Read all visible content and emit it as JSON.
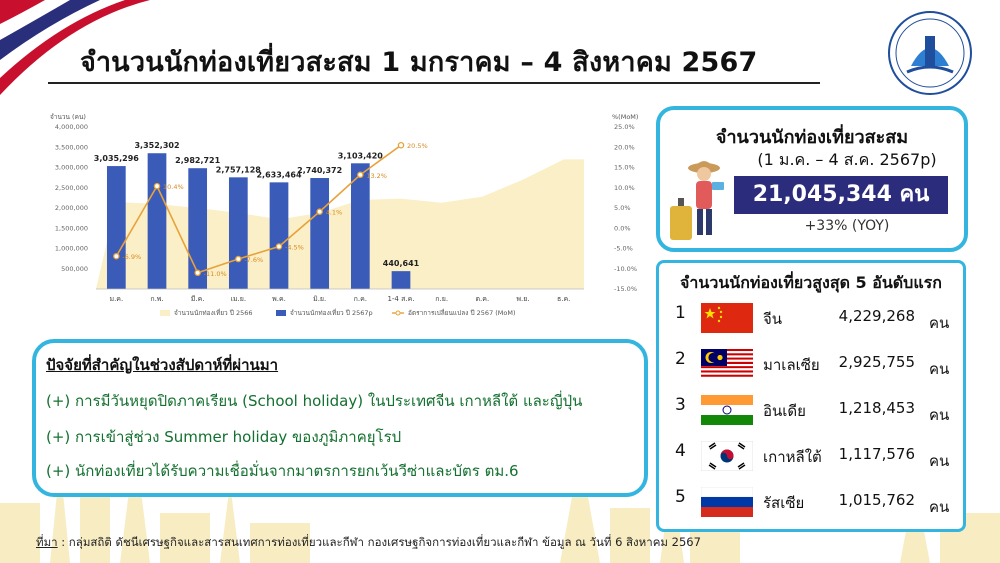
{
  "title": "จำนวนนักท่องเที่ยวสะสม 1 มกราคม – 4 สิงหาคม 2567",
  "total": {
    "title": "จำนวนนักท่องเที่ยวสะสม",
    "period": "(1 ม.ค. – 4 ส.ค. 2567p)",
    "value": "21,045,344 คน",
    "yoy": "+33% (YOY)"
  },
  "top5": {
    "title": "จำนวนนักท่องเที่ยวสูงสุด 5 อันดับแรก",
    "unit": "คน",
    "items": [
      {
        "rank": "1",
        "country": "จีน",
        "value": "4,229,268",
        "flag": "china-flag"
      },
      {
        "rank": "2",
        "country": "มาเลเซีย",
        "value": "2,925,755",
        "flag": "malaysia-flag"
      },
      {
        "rank": "3",
        "country": "อินเดีย",
        "value": "1,218,453",
        "flag": "india-flag"
      },
      {
        "rank": "4",
        "country": "เกาหลีใต้",
        "value": "1,117,576",
        "flag": "south-korea-flag"
      },
      {
        "rank": "5",
        "country": "รัสเซีย",
        "value": "1,015,762",
        "flag": "russia-flag"
      }
    ]
  },
  "factors": {
    "title": "ปัจจัยที่สำคัญในช่วงสัปดาห์ที่ผ่านมา",
    "items": [
      "(+) การมีวันหยุดปิดภาคเรียน (School holiday) ในประเทศจีน เกาหลีใต้ และญี่ปุ่น",
      "(+) การเข้าสู่ช่วง Summer holiday ของภูมิภาคยุโรป",
      "(+) นักท่องเที่ยวได้รับความเชื่อมั่นจากมาตรการยกเว้นวีซ่าและบัตร ตม.6"
    ]
  },
  "source": {
    "label": "ที่มา",
    "text": " : กลุ่มสถิติ ดัชนีเศรษฐกิจและสารสนเทศการท่องเที่ยวและกีฬา กองเศรษฐกิจการท่องเที่ยวและกีฬา ข้อมูล ณ วันที่ 6 สิงหาคม 2567"
  },
  "colors": {
    "accent": "#33b5e0",
    "navy": "#2b2c7b",
    "bar": "#3a5bb8",
    "line": "#e8a23a",
    "area": "#fbefc8",
    "green": "#13702f"
  },
  "chart_data": {
    "type": "bar",
    "ylabel": "จำนวน (คน)",
    "y2label": "%(MoM)",
    "ylim": [
      0,
      4000000
    ],
    "y2lim": [
      -15,
      25
    ],
    "yticks": [
      "4,000,000",
      "3,500,000",
      "3,000,000",
      "2,500,000",
      "2,000,000",
      "1,500,000",
      "1,000,000",
      "500,000"
    ],
    "y2ticks": [
      "25.0%",
      "20.0%",
      "15.0%",
      "10.0%",
      "5.0%",
      "0.0%",
      "-5.0%",
      "-10.0%",
      "-15.0%"
    ],
    "categories": [
      "ม.ค.",
      "ก.พ.",
      "มี.ค.",
      "เม.ย.",
      "พ.ค.",
      "มิ.ย.",
      "ก.ค.",
      "1-4 ส.ค.",
      "ก.ย.",
      "ต.ค.",
      "พ.ย.",
      "ธ.ค."
    ],
    "series": [
      {
        "name": "จำนวนนักท่องเที่ยว ปี 2566",
        "type": "area",
        "values": [
          2150000,
          2100000,
          2000000,
          1880000,
          1720000,
          1880000,
          2200000,
          2230000,
          2130000,
          2280000,
          2700000,
          3200000
        ]
      },
      {
        "name": "จำนวนนักท่องเที่ยว ปี 2567p",
        "type": "bar",
        "values": [
          3035296,
          3352302,
          2982721,
          2757128,
          2633464,
          2740372,
          3103420,
          440641,
          null,
          null,
          null,
          null
        ],
        "labels": [
          "3,035,296",
          "3,352,302",
          "2,982,721",
          "2,757,128",
          "2,633,464",
          "2,740,372",
          "3,103,420",
          "440,641",
          "",
          "",
          "",
          ""
        ]
      },
      {
        "name": "อัตราการเปลี่ยนแปลง ปี 2567 (MoM)",
        "type": "line",
        "axis": "right",
        "values": [
          -6.9,
          10.4,
          -11.0,
          -7.6,
          -4.5,
          4.1,
          13.2,
          20.5,
          null,
          null,
          null,
          null
        ],
        "labels": [
          "-6.9%",
          "10.4%",
          "-11.0%",
          "-7.6%",
          "-4.5%",
          "4.1%",
          "13.2%",
          "20.5%",
          "",
          "",
          "",
          ""
        ]
      }
    ]
  }
}
